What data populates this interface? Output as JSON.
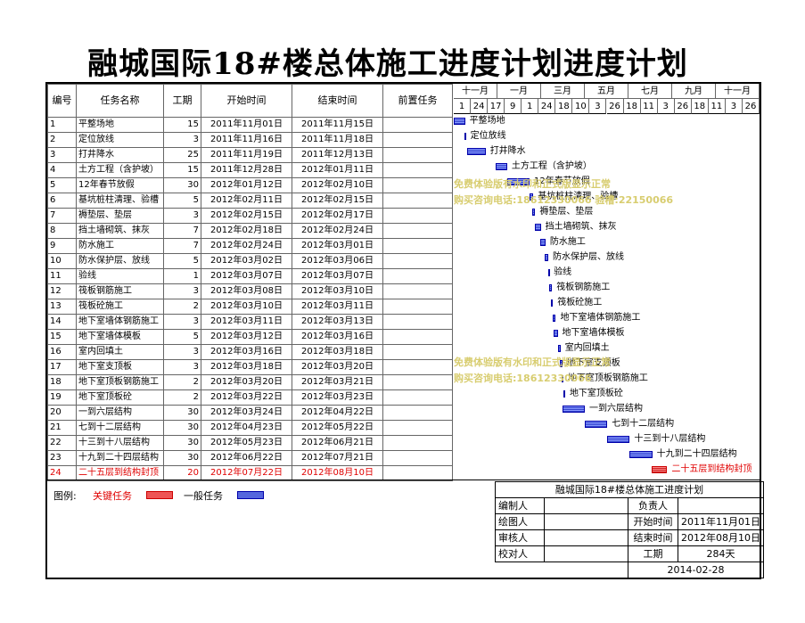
{
  "title": "融城国际18#楼总体施工进度计划进度计划",
  "headers": {
    "num": "编号",
    "name": "任务名称",
    "dur": "工期",
    "start": "开始时间",
    "end": "结束时间",
    "pred": "前置任务"
  },
  "months": [
    "十一月",
    "一月",
    "三月",
    "五月",
    "七月",
    "九月",
    "十一月"
  ],
  "days": [
    "1",
    "24",
    "17",
    "9",
    "1",
    "24",
    "18",
    "10",
    "3",
    "26",
    "18",
    "11",
    "3",
    "26",
    "18",
    "11",
    "3",
    "26"
  ],
  "tasks": [
    {
      "num": "1",
      "name": "平整场地",
      "dur": "15",
      "start": "2011年11月01日",
      "end": "2011年11月15日",
      "label": "平整场地",
      "critical": false
    },
    {
      "num": "2",
      "name": "定位放线",
      "dur": "3",
      "start": "2011年11月16日",
      "end": "2011年11月18日",
      "label": "定位放线",
      "critical": false
    },
    {
      "num": "3",
      "name": "打井降水",
      "dur": "25",
      "start": "2011年11月19日",
      "end": "2011年12月13日",
      "label": "打井降水",
      "critical": false
    },
    {
      "num": "4",
      "name": "土方工程（含护坡）",
      "dur": "15",
      "start": "2011年12月28日",
      "end": "2012年01月11日",
      "label": "土方工程（含护坡）",
      "critical": false
    },
    {
      "num": "5",
      "name": "12年春节放假",
      "dur": "30",
      "start": "2012年01月12日",
      "end": "2012年02月10日",
      "label": "12年春节放假",
      "critical": false
    },
    {
      "num": "6",
      "name": "基坑桩柱清理、验槽",
      "dur": "5",
      "start": "2012年02月11日",
      "end": "2012年02月15日",
      "label": "基坑桩柱清理、验槽",
      "critical": false
    },
    {
      "num": "7",
      "name": "褥垫层、垫层",
      "dur": "3",
      "start": "2012年02月15日",
      "end": "2012年02月17日",
      "label": "褥垫层、垫层",
      "critical": false
    },
    {
      "num": "8",
      "name": "挡土墙砌筑、抹灰",
      "dur": "7",
      "start": "2012年02月18日",
      "end": "2012年02月24日",
      "label": "挡土墙砌筑、抹灰",
      "critical": false
    },
    {
      "num": "9",
      "name": "防水施工",
      "dur": "7",
      "start": "2012年02月24日",
      "end": "2012年03月01日",
      "label": "防水施工",
      "critical": false
    },
    {
      "num": "10",
      "name": "防水保护层、放线",
      "dur": "5",
      "start": "2012年03月02日",
      "end": "2012年03月06日",
      "label": "防水保护层、放线",
      "critical": false
    },
    {
      "num": "11",
      "name": "验线",
      "dur": "1",
      "start": "2012年03月07日",
      "end": "2012年03月07日",
      "label": "验线",
      "critical": false
    },
    {
      "num": "12",
      "name": "筏板钢筋施工",
      "dur": "3",
      "start": "2012年03月08日",
      "end": "2012年03月10日",
      "label": "筏板钢筋施工",
      "critical": false
    },
    {
      "num": "13",
      "name": "筏板砼施工",
      "dur": "2",
      "start": "2012年03月10日",
      "end": "2012年03月11日",
      "label": "筏板砼施工",
      "critical": false
    },
    {
      "num": "14",
      "name": "地下室墙体钢筋施工",
      "dur": "3",
      "start": "2012年03月11日",
      "end": "2012年03月13日",
      "label": "地下室墙体钢筋施工",
      "critical": false
    },
    {
      "num": "15",
      "name": "地下室墙体模板",
      "dur": "5",
      "start": "2012年03月12日",
      "end": "2012年03月16日",
      "label": "地下室墙体模板",
      "critical": false
    },
    {
      "num": "16",
      "name": "室内回填土",
      "dur": "3",
      "start": "2012年03月16日",
      "end": "2012年03月18日",
      "label": "室内回填土",
      "critical": false
    },
    {
      "num": "17",
      "name": "地下室支顶板",
      "dur": "3",
      "start": "2012年03月18日",
      "end": "2012年03月20日",
      "label": "地下室支顶板",
      "critical": false
    },
    {
      "num": "18",
      "name": "地下室顶板钢筋施工",
      "dur": "2",
      "start": "2012年03月20日",
      "end": "2012年03月21日",
      "label": "地下室顶板钢筋施工",
      "critical": false
    },
    {
      "num": "19",
      "name": "地下室顶板砼",
      "dur": "2",
      "start": "2012年03月22日",
      "end": "2012年03月23日",
      "label": "地下室顶板砼",
      "critical": false
    },
    {
      "num": "20",
      "name": "一到六层结构",
      "dur": "30",
      "start": "2012年03月24日",
      "end": "2012年04月22日",
      "label": "一到六层结构",
      "critical": false
    },
    {
      "num": "21",
      "name": "七到十二层结构",
      "dur": "30",
      "start": "2012年04月23日",
      "end": "2012年05月22日",
      "label": "七到十二层结构",
      "critical": false
    },
    {
      "num": "22",
      "name": "十三到十八层结构",
      "dur": "30",
      "start": "2012年05月23日",
      "end": "2012年06月21日",
      "label": "十三到十八层结构",
      "critical": false
    },
    {
      "num": "23",
      "name": "十九到二十四层结构",
      "dur": "30",
      "start": "2012年06月22日",
      "end": "2012年07月21日",
      "label": "十九到二十四层结构",
      "critical": false
    },
    {
      "num": "24",
      "name": "二十五层到结构封顶",
      "dur": "20",
      "start": "2012年07月22日",
      "end": "2012年08月10日",
      "label": "二十五层到结构封顶",
      "critical": true
    }
  ],
  "bars": [
    {
      "x": 0,
      "w": 12
    },
    {
      "x": 11,
      "w": 2
    },
    {
      "x": 14,
      "w": 20
    },
    {
      "x": 45,
      "w": 12
    },
    {
      "x": 57,
      "w": 24
    },
    {
      "x": 81,
      "w": 4
    },
    {
      "x": 84,
      "w": 3
    },
    {
      "x": 87,
      "w": 6
    },
    {
      "x": 92,
      "w": 6
    },
    {
      "x": 97,
      "w": 4
    },
    {
      "x": 101,
      "w": 1
    },
    {
      "x": 102,
      "w": 3
    },
    {
      "x": 104,
      "w": 2
    },
    {
      "x": 106,
      "w": 3
    },
    {
      "x": 107,
      "w": 4
    },
    {
      "x": 111,
      "w": 3
    },
    {
      "x": 113,
      "w": 3
    },
    {
      "x": 115,
      "w": 2
    },
    {
      "x": 117,
      "w": 2
    },
    {
      "x": 116,
      "w": 24
    },
    {
      "x": 140,
      "w": 24
    },
    {
      "x": 164,
      "w": 24
    },
    {
      "x": 188,
      "w": 24
    },
    {
      "x": 211,
      "w": 17
    }
  ],
  "watermarks": [
    "免费体验版有水印和正式版显示正常",
    "购买咨询电话:18612330066 验槽:22150066",
    "免费体验版有水印和正式版显示正常",
    "购买咨询电话:18612330066"
  ],
  "legend": {
    "label": "图例:",
    "critical": "关键任务",
    "normal": "一般任务",
    "critical_color": "#ee5555",
    "normal_color": "#5566dd"
  },
  "info": {
    "title": "融城国际18#楼总体施工进度计划",
    "editor_label": "编制人",
    "owner_label": "负责人",
    "drawer_label": "绘图人",
    "start_label": "开始时间",
    "start_value": "2011年11月01日",
    "reviewer_label": "审核人",
    "end_label": "结束时间",
    "end_value": "2012年08月10日",
    "checker_label": "校对人",
    "dur_label": "工期",
    "dur_value": "284天",
    "date": "2014-02-28"
  }
}
